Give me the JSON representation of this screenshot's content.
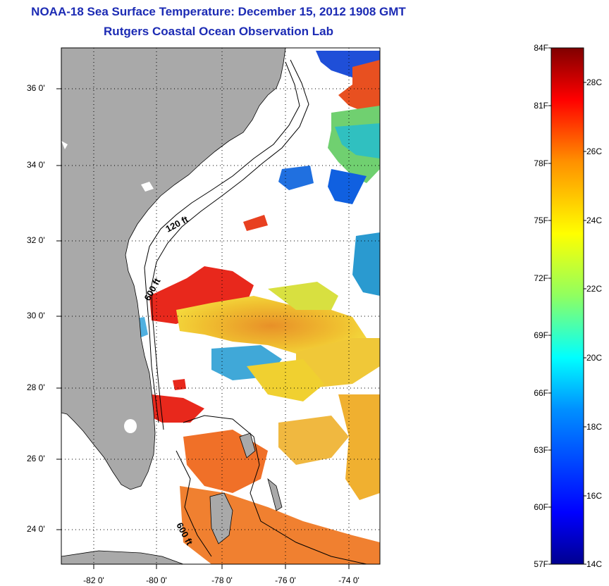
{
  "title_line1": "NOAA-18 Sea Surface Temperature:  December 15, 2012 1908 GMT",
  "title_line2": "Rutgers Coastal Ocean Observation Lab",
  "lat_labels": [
    "36 0'",
    "34 0'",
    "32 0'",
    "30 0'",
    "28 0'",
    "26 0'",
    "24 0'"
  ],
  "lon_labels": [
    "-82 0'",
    "-80 0'",
    "-78 0'",
    "-76 0'",
    "-74 0'"
  ],
  "isobath_labels": [
    "120 ft",
    "600 ft",
    "600 ft"
  ],
  "colorbar": {
    "f_labels": [
      "84F",
      "81F",
      "78F",
      "75F",
      "72F",
      "69F",
      "66F",
      "63F",
      "60F",
      "57F"
    ],
    "c_labels": [
      "28C",
      "26C",
      "24C",
      "22C",
      "20C",
      "18C",
      "16C",
      "14C"
    ],
    "colors": [
      "#000090",
      "#0000ff",
      "#0090ff",
      "#00ffff",
      "#90ff60",
      "#ffff00",
      "#ff9000",
      "#ff0000",
      "#800000"
    ]
  },
  "colors": {
    "land": "#a9a9a9",
    "title": "#1c2bb4",
    "sst_red": "#e8281c",
    "sst_orange": "#f09020",
    "sst_yellow": "#f5d020",
    "sst_blue": "#1f4fd8"
  }
}
